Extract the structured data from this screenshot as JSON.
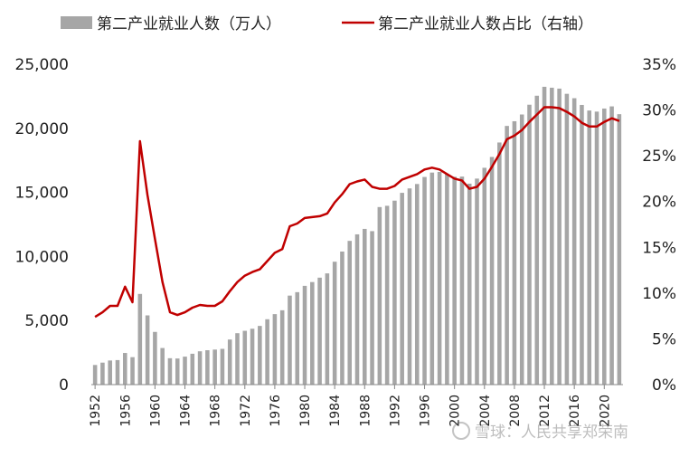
{
  "chart_data": {
    "type": "bar",
    "title": "",
    "xlabel": "",
    "ylabel": "",
    "ylim": [
      0,
      25000
    ],
    "y2lim": [
      0,
      35
    ],
    "grid": false,
    "legend_position": "top",
    "y_ticks": [
      "0",
      "5,000",
      "10,000",
      "15,000",
      "20,000",
      "25,000"
    ],
    "y2_ticks": [
      "0%",
      "5%",
      "10%",
      "15%",
      "20%",
      "25%",
      "30%",
      "35%"
    ],
    "x_tick_labels": [
      "1952",
      "1956",
      "1960",
      "1964",
      "1968",
      "1972",
      "1976",
      "1980",
      "1984",
      "1988",
      "1992",
      "1996",
      "2000",
      "2004",
      "2008",
      "2012",
      "2016",
      "2020"
    ],
    "x": [
      1952,
      1953,
      1954,
      1955,
      1956,
      1957,
      1958,
      1959,
      1960,
      1961,
      1962,
      1963,
      1964,
      1965,
      1966,
      1967,
      1968,
      1969,
      1970,
      1971,
      1972,
      1973,
      1974,
      1975,
      1976,
      1977,
      1978,
      1979,
      1980,
      1981,
      1982,
      1983,
      1984,
      1985,
      1986,
      1987,
      1988,
      1989,
      1990,
      1991,
      1992,
      1993,
      1994,
      1995,
      1996,
      1997,
      1998,
      1999,
      2000,
      2001,
      2002,
      2003,
      2004,
      2005,
      2006,
      2007,
      2008,
      2009,
      2010,
      2011,
      2012,
      2013,
      2014,
      2015,
      2016,
      2017,
      2018,
      2019,
      2020,
      2021,
      2022
    ],
    "series": [
      {
        "name": "第二产业就业人数（万人）",
        "kind": "bar",
        "axis": "left",
        "color": "#a6a6a6",
        "values": [
          1531,
          1715,
          1882,
          1913,
          2468,
          2142,
          7076,
          5402,
          4112,
          2856,
          2059,
          2038,
          2183,
          2408,
          2600,
          2683,
          2734,
          2790,
          3518,
          4012,
          4198,
          4360,
          4580,
          5100,
          5500,
          5800,
          6945,
          7214,
          7707,
          8003,
          8346,
          8679,
          9590,
          10384,
          11216,
          11726,
          12152,
          11976,
          13856,
          13954,
          14355,
          14965,
          15312,
          15655,
          16203,
          16547,
          16600,
          16421,
          16219,
          16234,
          15682,
          16077,
          16920,
          17766,
          18894,
          20186,
          20553,
          21080,
          21842,
          22544,
          23241,
          23170,
          23099,
          22693,
          22350,
          21824,
          21390,
          21305,
          21543,
          21712,
          21105
        ]
      },
      {
        "name": "第二产业就业人数占比（右轴）",
        "kind": "line",
        "axis": "right",
        "color": "#c00000",
        "values": [
          7.4,
          7.9,
          8.6,
          8.6,
          10.7,
          9.0,
          26.6,
          20.7,
          15.9,
          11.2,
          7.9,
          7.6,
          7.9,
          8.4,
          8.7,
          8.6,
          8.6,
          9.1,
          10.2,
          11.2,
          11.9,
          12.3,
          12.6,
          13.5,
          14.4,
          14.8,
          17.3,
          17.6,
          18.2,
          18.3,
          18.4,
          18.7,
          19.9,
          20.8,
          21.9,
          22.2,
          22.4,
          21.6,
          21.4,
          21.4,
          21.7,
          22.4,
          22.7,
          23.0,
          23.5,
          23.7,
          23.5,
          23.0,
          22.5,
          22.3,
          21.4,
          21.6,
          22.5,
          23.8,
          25.2,
          26.8,
          27.2,
          27.8,
          28.7,
          29.5,
          30.3,
          30.3,
          30.2,
          29.8,
          29.3,
          28.6,
          28.2,
          28.2,
          28.7,
          29.1,
          28.8
        ]
      }
    ]
  },
  "watermark": "雪球：人民共享郑荣南"
}
